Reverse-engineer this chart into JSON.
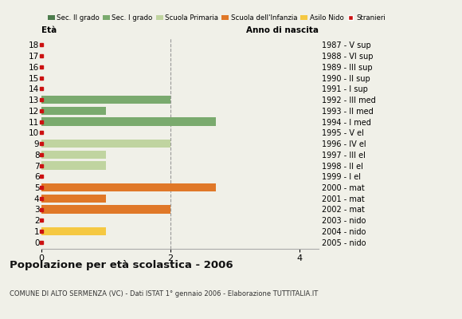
{
  "ages": [
    18,
    17,
    16,
    15,
    14,
    13,
    12,
    11,
    10,
    9,
    8,
    7,
    6,
    5,
    4,
    3,
    2,
    1,
    0
  ],
  "years": [
    "1987 - V sup",
    "1988 - VI sup",
    "1989 - III sup",
    "1990 - II sup",
    "1991 - I sup",
    "1992 - III med",
    "1993 - II med",
    "1994 - I med",
    "1995 - V el",
    "1996 - IV el",
    "1997 - III el",
    "1998 - II el",
    "1999 - I el",
    "2000 - mat",
    "2001 - mat",
    "2002 - mat",
    "2003 - nido",
    "2004 - nido",
    "2005 - nido"
  ],
  "bar_values": [
    0,
    0,
    0,
    0,
    0,
    2,
    1,
    2.7,
    0,
    2,
    1,
    1,
    0,
    2.7,
    1,
    2,
    0,
    1,
    0
  ],
  "sec2_color": "#4d7c4d",
  "sec1_color": "#7aaa6e",
  "primaria_color": "#c0d4a0",
  "infanzia_color": "#e07828",
  "nido_color": "#f5c842",
  "stranieri_color": "#cc1111",
  "legend_labels": [
    "Sec. II grado",
    "Sec. I grado",
    "Scuola Primaria",
    "Scuola dell'Infanzia",
    "Asilo Nido",
    "Stranieri"
  ],
  "legend_colors": [
    "#4d7c4d",
    "#7aaa6e",
    "#c0d4a0",
    "#e07828",
    "#f5c842",
    "#cc1111"
  ],
  "title": "Popolazione per età scolastica - 2006",
  "subtitle": "COMUNE DI ALTO SERMENZA (VC) - Dati ISTAT 1° gennaio 2006 - Elaborazione TUTTITALIA.IT",
  "label_left": "Età",
  "label_right": "Anno di nascita",
  "bg_color": "#f0f0e8",
  "bar_height": 0.75,
  "xlim_max": 4.3
}
